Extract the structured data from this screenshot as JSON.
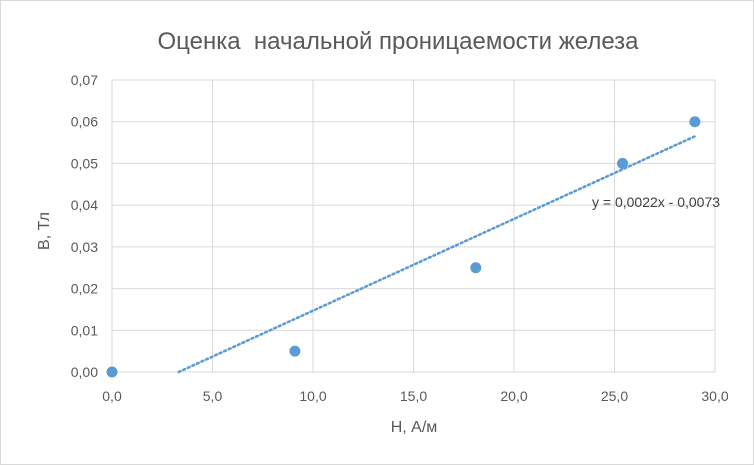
{
  "chart_data": {
    "type": "scatter",
    "title": "Оценка  начальной проницаемости железа",
    "xlabel": "H, А/м",
    "ylabel": "B, Тл",
    "xlim": [
      0,
      30
    ],
    "ylim": [
      0,
      0.07
    ],
    "x_ticks": [
      "0,0",
      "5,0",
      "10,0",
      "15,0",
      "20,0",
      "25,0",
      "30,0"
    ],
    "y_ticks": [
      "0,00",
      "0,01",
      "0,02",
      "0,03",
      "0,04",
      "0,05",
      "0,06",
      "0,07"
    ],
    "grid": true,
    "series": [
      {
        "x": [
          0.0,
          9.1,
          18.1,
          25.4,
          29.0
        ],
        "y": [
          0.0,
          0.005,
          0.025,
          0.05,
          0.06
        ],
        "color": "#5b9bd5"
      }
    ],
    "trendline": {
      "type": "linear",
      "slope": 0.0022,
      "intercept": -0.0073,
      "equation": "y = 0,0022x - 0,0073",
      "style": "dotted",
      "color": "#5b9bd5"
    }
  }
}
